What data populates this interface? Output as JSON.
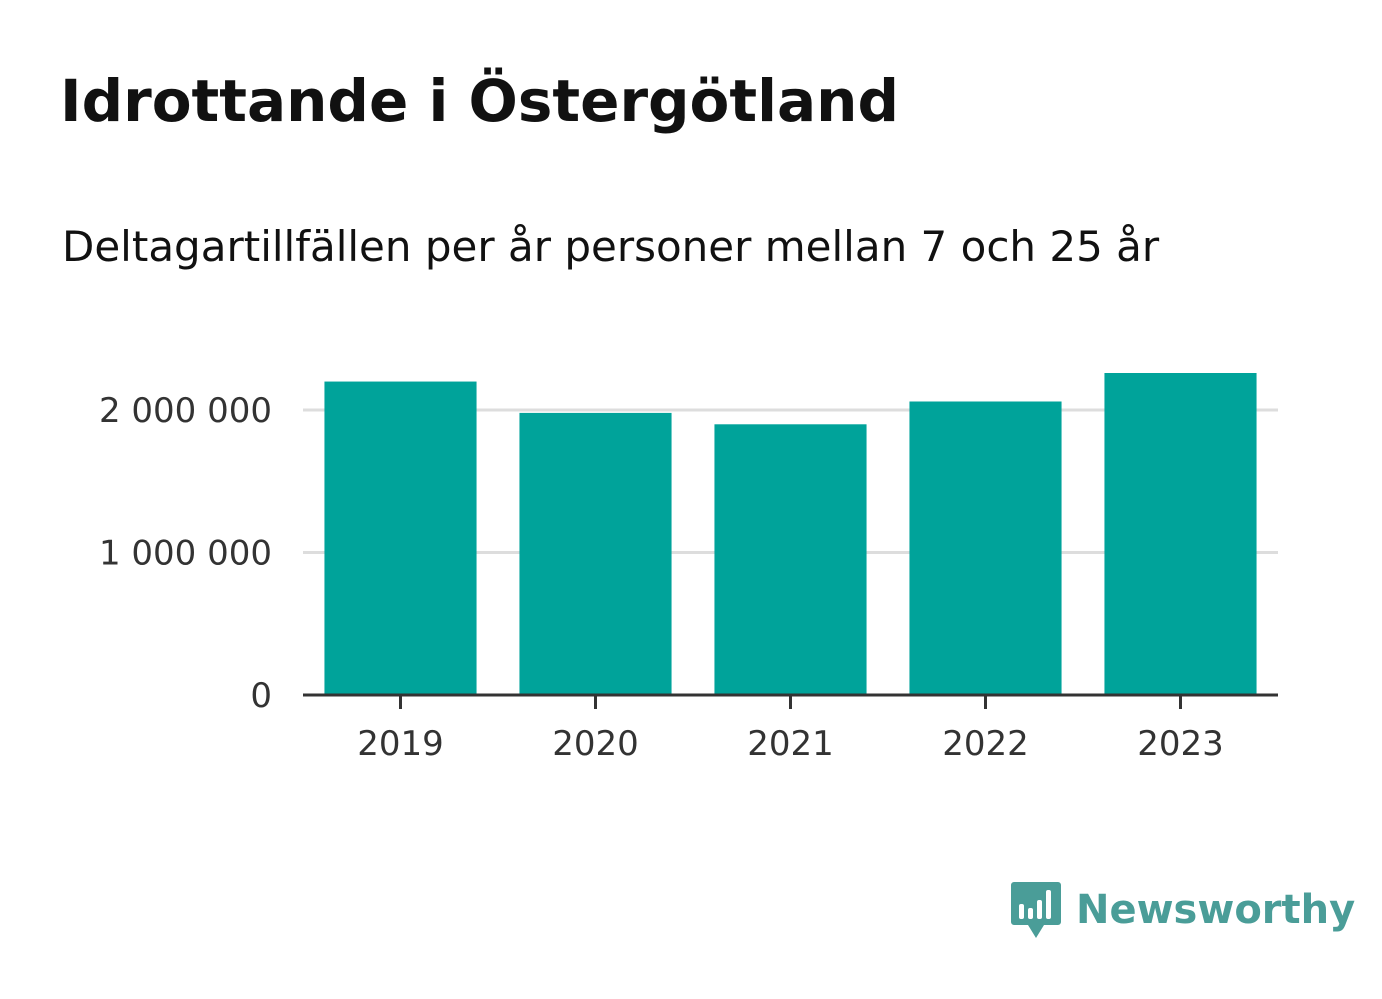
{
  "header": {
    "title": "Idrottande i Östergötland",
    "subtitle": "Deltagartillfällen per år personer mellan 7 och 25 år"
  },
  "branding": {
    "logo_text": "Newsworthy",
    "logo_icon": "newsworthy-chart-bubble-icon",
    "color": "#4a9d98"
  },
  "colors": {
    "bar": "#00a39a",
    "grid": "#dddddd",
    "axis": "#333333"
  },
  "chart_data": {
    "type": "bar",
    "title": "Idrottande i Östergötland",
    "subtitle": "Deltagartillfällen per år personer mellan 7 och 25 år",
    "categories": [
      "2019",
      "2020",
      "2021",
      "2022",
      "2023"
    ],
    "values": [
      2200000,
      1980000,
      1900000,
      2060000,
      2260000
    ],
    "ylim": [
      0,
      2260000
    ],
    "yticks": [
      0,
      1000000,
      2000000
    ],
    "ytick_labels": [
      "0",
      "1 000 000",
      "2 000 000"
    ],
    "xlabel": "",
    "ylabel": "",
    "grid": true,
    "legend": false
  }
}
